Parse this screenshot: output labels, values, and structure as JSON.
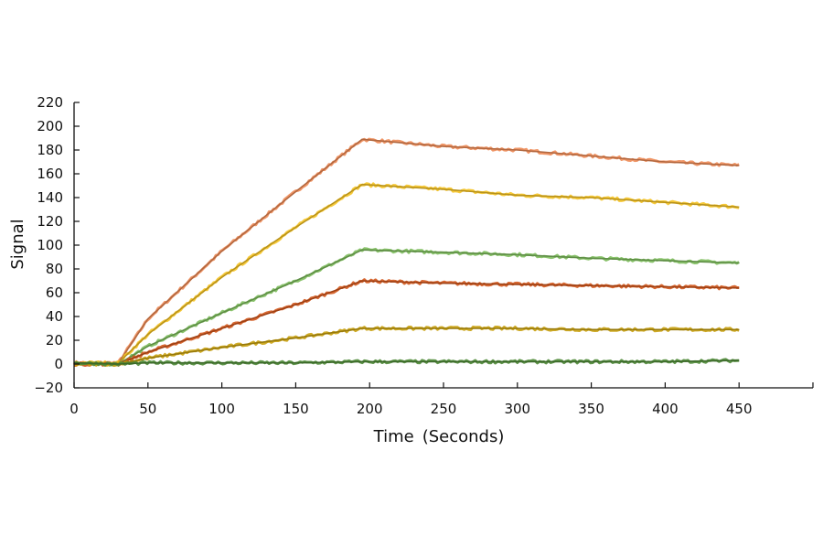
{
  "chart_data": {
    "type": "line",
    "title": "",
    "xlabel": "Time (Seconds)",
    "ylabel": "Signal",
    "xlim": [
      0,
      500
    ],
    "ylim": [
      -20,
      220
    ],
    "xticks": [
      0,
      50,
      100,
      150,
      200,
      250,
      300,
      350,
      400,
      450
    ],
    "yticks": [
      -20,
      0,
      20,
      40,
      60,
      80,
      100,
      120,
      140,
      160,
      180,
      200,
      220
    ],
    "grid": false,
    "legend": "none",
    "series": [
      {
        "color": "#ED8A55",
        "x": [
          0,
          30,
          50,
          100,
          150,
          195,
          250,
          300,
          350,
          400,
          450
        ],
        "values": [
          1,
          1,
          38,
          95,
          145,
          189,
          183,
          180,
          175,
          170,
          167
        ]
      },
      {
        "color": "#F5C324",
        "x": [
          0,
          30,
          50,
          100,
          150,
          195,
          250,
          300,
          350,
          400,
          450
        ],
        "values": [
          1,
          1,
          25,
          73,
          115,
          151,
          147,
          142,
          140,
          136,
          132
        ]
      },
      {
        "color": "#7DBC5C",
        "x": [
          0,
          30,
          50,
          100,
          150,
          195,
          250,
          300,
          350,
          400,
          450
        ],
        "values": [
          0,
          0,
          15,
          43,
          70,
          96,
          94,
          92,
          89,
          87,
          85
        ]
      },
      {
        "color": "#D2561B",
        "x": [
          0,
          30,
          50,
          100,
          150,
          195,
          250,
          300,
          350,
          400,
          450
        ],
        "values": [
          0,
          0,
          10,
          30,
          50,
          70,
          68,
          67,
          66,
          65,
          64
        ]
      },
      {
        "color": "#C9A10E",
        "x": [
          0,
          30,
          50,
          100,
          150,
          195,
          250,
          300,
          350,
          400,
          450
        ],
        "values": [
          0,
          0,
          5,
          14,
          22,
          30,
          30,
          30,
          29,
          29,
          29
        ]
      },
      {
        "color": "#4E8A36",
        "x": [
          0,
          30,
          50,
          100,
          150,
          195,
          250,
          300,
          350,
          400,
          450
        ],
        "values": [
          1,
          0,
          1,
          1,
          1,
          2,
          2,
          2,
          2,
          2,
          3
        ]
      }
    ]
  }
}
